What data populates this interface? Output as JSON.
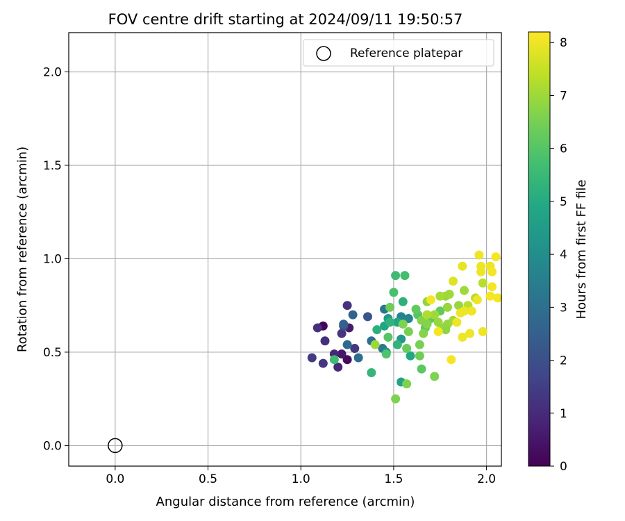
{
  "chart_data": {
    "type": "scatter",
    "title": "FOV centre drift starting at 2024/09/11 19:50:57",
    "xlabel": "Angular distance from reference (arcmin)",
    "ylabel": "Rotation from reference (arcmin)",
    "xlim": [
      -0.25,
      2.08
    ],
    "ylim": [
      -0.11,
      2.21
    ],
    "xticks": [
      "0.0",
      "0.5",
      "1.0",
      "1.5",
      "2.0"
    ],
    "yticks": [
      "0.0",
      "0.5",
      "1.0",
      "1.5",
      "2.0"
    ],
    "grid": true,
    "legend": {
      "position": "top-right",
      "label": "Reference platepar"
    },
    "reference_point": {
      "x": 0.0,
      "y": 0.0
    },
    "colorbar": {
      "label": "Hours from first FF file",
      "range": [
        0,
        8.2
      ],
      "ticks": [
        "0",
        "1",
        "2",
        "3",
        "4",
        "5",
        "6",
        "7",
        "8"
      ],
      "colormap": "viridis"
    },
    "series": [
      {
        "points": [
          {
            "x": 1.12,
            "y": 0.64,
            "c": 0.1
          },
          {
            "x": 1.25,
            "y": 0.46,
            "c": 0.2
          },
          {
            "x": 1.22,
            "y": 0.49,
            "c": 0.5
          },
          {
            "x": 1.26,
            "y": 0.63,
            "c": 0.6
          },
          {
            "x": 1.18,
            "y": 0.49,
            "c": 0.9
          },
          {
            "x": 1.2,
            "y": 0.42,
            "c": 0.9
          },
          {
            "x": 1.09,
            "y": 0.63,
            "c": 1.1
          },
          {
            "x": 1.13,
            "y": 0.56,
            "c": 1.1
          },
          {
            "x": 1.25,
            "y": 0.75,
            "c": 1.2
          },
          {
            "x": 1.22,
            "y": 0.6,
            "c": 1.3
          },
          {
            "x": 1.29,
            "y": 0.52,
            "c": 1.3
          },
          {
            "x": 1.12,
            "y": 0.44,
            "c": 1.3
          },
          {
            "x": 1.06,
            "y": 0.47,
            "c": 1.4
          },
          {
            "x": 1.23,
            "y": 0.64,
            "c": 1.9
          },
          {
            "x": 1.36,
            "y": 0.69,
            "c": 2.2
          },
          {
            "x": 1.23,
            "y": 0.65,
            "c": 2.5
          },
          {
            "x": 1.28,
            "y": 0.7,
            "c": 2.6
          },
          {
            "x": 1.25,
            "y": 0.54,
            "c": 2.8
          },
          {
            "x": 1.31,
            "y": 0.47,
            "c": 2.9
          },
          {
            "x": 1.38,
            "y": 0.56,
            "c": 3.0
          },
          {
            "x": 1.45,
            "y": 0.73,
            "c": 3.2
          },
          {
            "x": 1.44,
            "y": 0.52,
            "c": 3.3
          },
          {
            "x": 1.54,
            "y": 0.69,
            "c": 3.6
          },
          {
            "x": 1.58,
            "y": 0.68,
            "c": 3.7
          },
          {
            "x": 1.46,
            "y": 0.5,
            "c": 4.1
          },
          {
            "x": 1.54,
            "y": 0.57,
            "c": 4.4
          },
          {
            "x": 1.47,
            "y": 0.68,
            "c": 4.5
          },
          {
            "x": 1.54,
            "y": 0.34,
            "c": 4.7
          },
          {
            "x": 1.52,
            "y": 0.66,
            "c": 4.8
          },
          {
            "x": 1.59,
            "y": 0.48,
            "c": 4.9
          },
          {
            "x": 1.45,
            "y": 0.64,
            "c": 4.8
          },
          {
            "x": 1.41,
            "y": 0.62,
            "c": 5.2
          },
          {
            "x": 1.55,
            "y": 0.77,
            "c": 5.2
          },
          {
            "x": 1.48,
            "y": 0.66,
            "c": 5.3
          },
          {
            "x": 1.52,
            "y": 0.54,
            "c": 5.3
          },
          {
            "x": 1.38,
            "y": 0.39,
            "c": 5.4
          },
          {
            "x": 1.18,
            "y": 0.46,
            "c": 5.6
          },
          {
            "x": 1.51,
            "y": 0.91,
            "c": 5.6
          },
          {
            "x": 1.56,
            "y": 0.91,
            "c": 5.7
          },
          {
            "x": 1.5,
            "y": 0.82,
            "c": 5.8
          },
          {
            "x": 1.46,
            "y": 0.49,
            "c": 5.9
          },
          {
            "x": 1.47,
            "y": 0.58,
            "c": 6.0
          },
          {
            "x": 1.63,
            "y": 0.7,
            "c": 6.0
          },
          {
            "x": 1.65,
            "y": 0.41,
            "c": 6.1
          },
          {
            "x": 1.62,
            "y": 0.73,
            "c": 6.2
          },
          {
            "x": 1.67,
            "y": 0.63,
            "c": 6.1
          },
          {
            "x": 1.7,
            "y": 0.68,
            "c": 6.2
          },
          {
            "x": 1.75,
            "y": 0.72,
            "c": 6.2
          },
          {
            "x": 1.48,
            "y": 0.74,
            "c": 6.4
          },
          {
            "x": 1.57,
            "y": 0.52,
            "c": 6.3
          },
          {
            "x": 1.64,
            "y": 0.48,
            "c": 6.4
          },
          {
            "x": 1.64,
            "y": 0.54,
            "c": 6.5
          },
          {
            "x": 1.51,
            "y": 0.25,
            "c": 6.6
          },
          {
            "x": 1.57,
            "y": 0.33,
            "c": 6.6
          },
          {
            "x": 1.72,
            "y": 0.37,
            "c": 6.6
          },
          {
            "x": 1.58,
            "y": 0.61,
            "c": 6.5
          },
          {
            "x": 1.55,
            "y": 0.65,
            "c": 6.6
          },
          {
            "x": 1.66,
            "y": 0.6,
            "c": 6.7
          },
          {
            "x": 1.65,
            "y": 0.67,
            "c": 6.7
          },
          {
            "x": 1.68,
            "y": 0.65,
            "c": 6.7
          },
          {
            "x": 1.68,
            "y": 0.77,
            "c": 6.8
          },
          {
            "x": 1.74,
            "y": 0.66,
            "c": 6.9
          },
          {
            "x": 1.79,
            "y": 0.65,
            "c": 6.9
          },
          {
            "x": 1.76,
            "y": 0.63,
            "c": 6.9
          },
          {
            "x": 1.78,
            "y": 0.8,
            "c": 6.9
          },
          {
            "x": 1.85,
            "y": 0.75,
            "c": 6.9
          },
          {
            "x": 1.79,
            "y": 0.74,
            "c": 6.9
          },
          {
            "x": 1.78,
            "y": 0.62,
            "c": 6.8
          },
          {
            "x": 1.4,
            "y": 0.54,
            "c": 7.0
          },
          {
            "x": 1.8,
            "y": 0.81,
            "c": 7.0
          },
          {
            "x": 1.88,
            "y": 0.83,
            "c": 7.0
          },
          {
            "x": 1.75,
            "y": 0.8,
            "c": 7.1
          },
          {
            "x": 1.72,
            "y": 0.7,
            "c": 7.0
          },
          {
            "x": 1.82,
            "y": 0.67,
            "c": 7.0
          },
          {
            "x": 1.68,
            "y": 0.7,
            "c": 7.2
          },
          {
            "x": 1.9,
            "y": 0.75,
            "c": 7.3
          },
          {
            "x": 1.98,
            "y": 0.87,
            "c": 7.3
          },
          {
            "x": 1.94,
            "y": 0.79,
            "c": 7.3
          },
          {
            "x": 1.82,
            "y": 0.88,
            "c": 7.8
          },
          {
            "x": 1.87,
            "y": 0.96,
            "c": 7.9
          },
          {
            "x": 1.96,
            "y": 1.02,
            "c": 8.0
          },
          {
            "x": 2.02,
            "y": 0.96,
            "c": 8.0
          },
          {
            "x": 2.05,
            "y": 1.01,
            "c": 8.1
          },
          {
            "x": 1.97,
            "y": 0.96,
            "c": 8.0
          },
          {
            "x": 1.97,
            "y": 0.93,
            "c": 8.0
          },
          {
            "x": 2.03,
            "y": 0.93,
            "c": 8.1
          },
          {
            "x": 2.03,
            "y": 0.85,
            "c": 8.1
          },
          {
            "x": 2.02,
            "y": 0.8,
            "c": 8.1
          },
          {
            "x": 2.06,
            "y": 0.79,
            "c": 8.1
          },
          {
            "x": 1.95,
            "y": 0.78,
            "c": 8.0
          },
          {
            "x": 1.92,
            "y": 0.72,
            "c": 8.0
          },
          {
            "x": 1.86,
            "y": 0.71,
            "c": 8.0
          },
          {
            "x": 1.88,
            "y": 0.72,
            "c": 8.0
          },
          {
            "x": 1.84,
            "y": 0.66,
            "c": 8.0
          },
          {
            "x": 1.87,
            "y": 0.58,
            "c": 8.0
          },
          {
            "x": 1.91,
            "y": 0.6,
            "c": 8.0
          },
          {
            "x": 1.98,
            "y": 0.61,
            "c": 8.0
          },
          {
            "x": 1.81,
            "y": 0.46,
            "c": 8.1
          },
          {
            "x": 1.74,
            "y": 0.61,
            "c": 8.1
          },
          {
            "x": 1.7,
            "y": 0.78,
            "c": 8.1
          }
        ]
      }
    ]
  }
}
